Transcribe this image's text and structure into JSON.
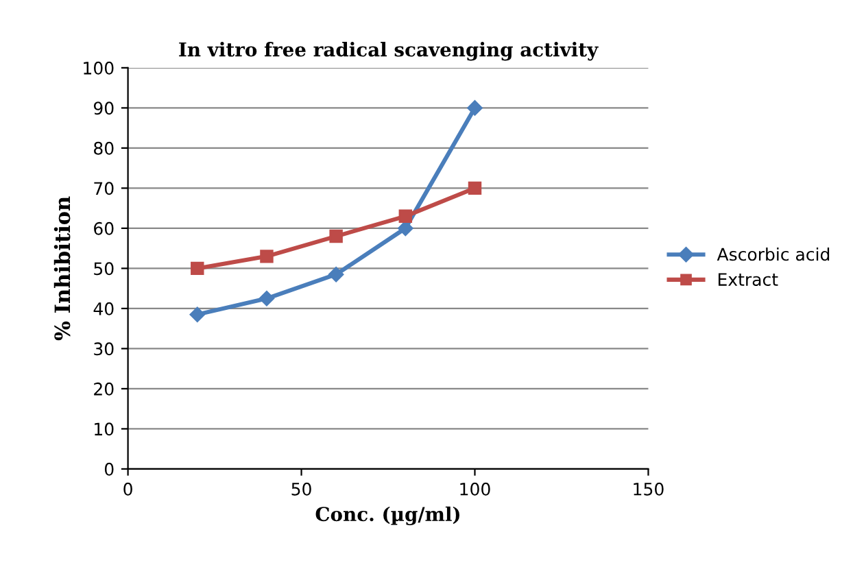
{
  "chart_data": {
    "type": "line",
    "title": "In vitro free radical scavenging activity",
    "xlabel": "Conc. (µg/ml)",
    "ylabel": "% Inhibition",
    "x": [
      20,
      40,
      60,
      80,
      100
    ],
    "series": [
      {
        "name": "Ascorbic acid",
        "color": "#4a7ebb",
        "marker": "diamond",
        "values": [
          38.5,
          42.5,
          48.5,
          60,
          90
        ]
      },
      {
        "name": "Extract",
        "color": "#be4b48",
        "marker": "square",
        "values": [
          50,
          53,
          58,
          63,
          70
        ]
      }
    ],
    "xlim": [
      0,
      150
    ],
    "xticks": [
      0,
      50,
      100,
      150
    ],
    "ylim": [
      0,
      100
    ],
    "yticks": [
      0,
      10,
      20,
      30,
      40,
      50,
      60,
      70,
      80,
      90,
      100
    ],
    "grid": "y",
    "legend": "right",
    "line_style": "solid"
  }
}
